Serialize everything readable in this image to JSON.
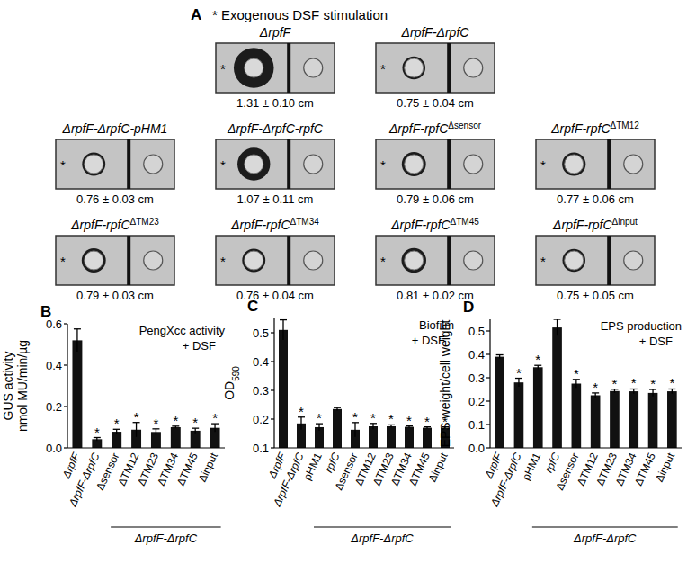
{
  "panel_a": {
    "label": "A",
    "heading": "* Exogenous DSF stimulation",
    "marker": "*",
    "strains": [
      {
        "name": "ΔrpfF",
        "value": 1.31,
        "label": "1.31 ± 0.10 cm"
      },
      {
        "name": "ΔrpfF-ΔrpfC",
        "value": 0.75,
        "label": "0.75 ± 0.04 cm"
      },
      {
        "name": "ΔrpfF-ΔrpfC-pHM1",
        "value": 0.76,
        "label": "0.76 ± 0.03 cm"
      },
      {
        "name": "ΔrpfF-ΔrpfC-rpfC",
        "value": 1.07,
        "label": "1.07 ± 0.11 cm"
      },
      {
        "name": "ΔrpfF-rpfC",
        "sup": "Δsensor",
        "value": 0.79,
        "label": "0.79 ± 0.06 cm"
      },
      {
        "name": "ΔrpfF-rpfC",
        "sup": "ΔTM12",
        "value": 0.77,
        "label": "0.77 ± 0.06 cm"
      },
      {
        "name": "ΔrpfF-rpfC",
        "sup": "ΔTM23",
        "value": 0.79,
        "label": "0.79 ± 0.03 cm"
      },
      {
        "name": "ΔrpfF-rpfC",
        "sup": "ΔTM34",
        "value": 0.76,
        "label": "0.76 ± 0.04 cm"
      },
      {
        "name": "ΔrpfF-rpfC",
        "sup": "ΔTM45",
        "value": 0.81,
        "label": "0.81 ± 0.02 cm"
      },
      {
        "name": "ΔrpfF-rpfC",
        "sup": "Δinput",
        "value": 0.75,
        "label": "0.75 ± 0.05 cm"
      }
    ]
  },
  "chart_data": [
    {
      "type": "bar",
      "panel": "B",
      "title": "PengXcc activity",
      "subtitle": "+ DSF",
      "y_label": [
        "GUS activity",
        "nmol MU/min/µg"
      ],
      "categories": [
        "ΔrpfF",
        "ΔrpfF-ΔrpfC",
        "Δsensor",
        "ΔTM12",
        "ΔTM23",
        "ΔTM34",
        "ΔTM45",
        "Δinput"
      ],
      "values": [
        0.52,
        0.042,
        0.078,
        0.088,
        0.077,
        0.1,
        0.083,
        0.097
      ],
      "errors": [
        0.055,
        0.008,
        0.012,
        0.035,
        0.015,
        0.005,
        0.012,
        0.02
      ],
      "significance": [
        null,
        "*",
        "*",
        "*",
        "*",
        "*",
        "*",
        "*"
      ],
      "group": {
        "label": "ΔrpfF-ΔrpfC",
        "start": 2,
        "end": 7
      },
      "color": "#111111",
      "grid": false,
      "ylim": [
        0,
        0.6
      ],
      "yticks": [
        {
          "value": 0,
          "label": "0.0"
        },
        0.2,
        0.4,
        0.6
      ]
    },
    {
      "type": "bar",
      "panel": "C",
      "title": "Biofilm",
      "subtitle": "+ DSF",
      "y_label": [
        "OD590"
      ],
      "categories": [
        "ΔrpfF",
        "ΔrpfF-ΔrpfC",
        "pHM1",
        "rpfC",
        "Δsensor",
        "ΔTM12",
        "ΔTM23",
        "ΔTM34",
        "ΔTM45",
        "Δinput"
      ],
      "values": [
        0.51,
        0.185,
        0.172,
        0.235,
        0.163,
        0.175,
        0.175,
        0.173,
        0.17,
        0.17
      ],
      "errors": [
        0.035,
        0.022,
        0.012,
        0.005,
        0.025,
        0.01,
        0.005,
        0.003,
        0.003,
        0.003
      ],
      "significance": [
        null,
        "*",
        "*",
        null,
        "*",
        "*",
        "*",
        "*",
        "*",
        "*"
      ],
      "group": {
        "label": "ΔrpfF-ΔrpfC",
        "start": 2,
        "end": 9
      },
      "color": "#111111",
      "grid": false,
      "ylim": [
        0.1,
        0.55
      ],
      "yticks": [
        0.1,
        0.2,
        0.3,
        0.4,
        0.5
      ]
    },
    {
      "type": "bar",
      "panel": "D",
      "title": "EPS production",
      "subtitle": "+ DSF",
      "y_label": [
        "EPS weight/cell weight"
      ],
      "categories": [
        "ΔrpfF",
        "ΔrpfF-ΔrpfC",
        "pHM1",
        "rpfC",
        "Δsensor",
        "ΔTM12",
        "ΔTM23",
        "ΔTM34",
        "ΔTM45",
        "Δinput"
      ],
      "values": [
        0.39,
        0.28,
        0.345,
        0.515,
        0.275,
        0.225,
        0.243,
        0.242,
        0.235,
        0.242
      ],
      "errors": [
        0.008,
        0.018,
        0.008,
        0.035,
        0.018,
        0.01,
        0.008,
        0.01,
        0.015,
        0.01
      ],
      "significance": [
        null,
        "*",
        "*",
        null,
        "*",
        "*",
        "*",
        "*",
        "*",
        "*"
      ],
      "group": {
        "label": "ΔrpfF-ΔrpfC",
        "start": 2,
        "end": 9
      },
      "color": "#111111",
      "grid": false,
      "ylim": [
        0,
        0.55
      ],
      "yticks": [
        {
          "value": 0,
          "label": "0.0"
        },
        0.1,
        0.2,
        0.3,
        0.4,
        0.5
      ]
    }
  ]
}
